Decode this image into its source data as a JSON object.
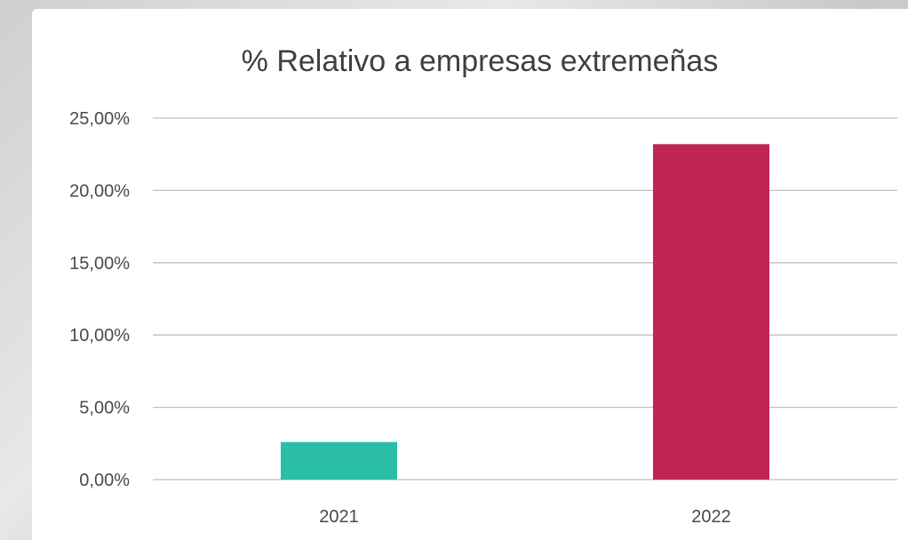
{
  "chart_data": {
    "type": "bar",
    "title": "% Relativo a empresas extremeñas",
    "xlabel": "",
    "ylabel": "",
    "categories": [
      "2021",
      "2022"
    ],
    "values": [
      2.6,
      23.2
    ],
    "value_format": "percent",
    "ylim": [
      0,
      25
    ],
    "yticks": [
      0,
      5,
      10,
      15,
      20,
      25
    ],
    "ytick_labels": [
      "0,00%",
      "5,00%",
      "10,00%",
      "15,00%",
      "20,00%",
      "25,00%"
    ],
    "bar_colors": [
      "#2bbfa8",
      "#c02555"
    ],
    "grid": true,
    "legend": "none"
  }
}
